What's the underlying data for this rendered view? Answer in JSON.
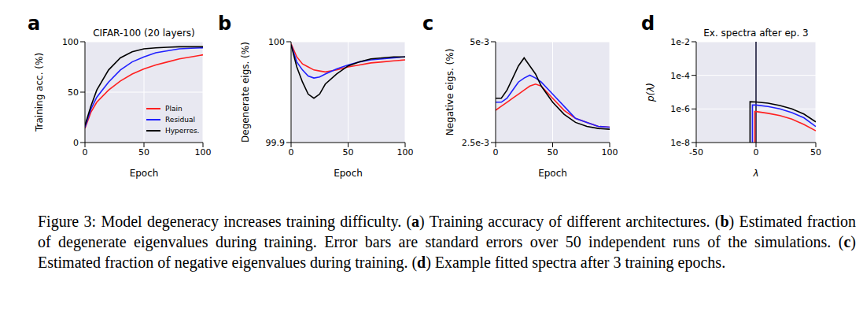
{
  "chart_data": [
    {
      "panel": "a",
      "type": "line",
      "title": "CIFAR-100 (20 layers)",
      "x_label": "Epoch",
      "y_label": "Training acc. (%)",
      "x": [
        0,
        5,
        10,
        20,
        30,
        40,
        50,
        60,
        70,
        80,
        90,
        100
      ],
      "series": [
        {
          "name": "Plain",
          "color": "#ff2020",
          "values": [
            14,
            30,
            40,
            52,
            61,
            68,
            73,
            77,
            80,
            83,
            85,
            87
          ]
        },
        {
          "name": "Residual",
          "color": "#2020ff",
          "values": [
            15,
            33,
            45,
            60,
            72,
            80,
            85,
            89,
            91,
            93,
            93.5,
            94
          ]
        },
        {
          "name": "Hyperres.",
          "color": "#000000",
          "values": [
            17,
            36,
            52,
            72,
            84,
            90,
            93,
            94,
            94.5,
            95,
            95,
            95
          ]
        }
      ],
      "xlim": [
        0,
        100
      ],
      "xticks": [
        0,
        50,
        100
      ],
      "ylim": [
        0,
        100
      ],
      "yticks": [
        0,
        50,
        100
      ],
      "grid": true,
      "legend": "lower right"
    },
    {
      "panel": "b",
      "type": "line",
      "x_label": "Epoch",
      "y_label": "Degenerate eigs. (%)",
      "x": [
        0,
        5,
        10,
        15,
        20,
        25,
        30,
        40,
        50,
        60,
        70,
        80,
        90,
        100
      ],
      "series": [
        {
          "name": "Plain",
          "color": "#ff2020",
          "values": [
            99.998,
            99.985,
            99.978,
            99.975,
            99.972,
            99.971,
            99.97,
            99.972,
            99.975,
            99.977,
            99.979,
            99.98,
            99.981,
            99.982
          ]
        },
        {
          "name": "Residual",
          "color": "#2020ff",
          "values": [
            99.997,
            99.98,
            99.972,
            99.966,
            99.964,
            99.965,
            99.968,
            99.973,
            99.977,
            99.98,
            99.982,
            99.983,
            99.984,
            99.985
          ]
        },
        {
          "name": "Hyperres.",
          "color": "#000000",
          "values": [
            99.997,
            99.975,
            99.96,
            99.948,
            99.944,
            99.948,
            99.958,
            99.968,
            99.976,
            99.98,
            99.983,
            99.984,
            99.985,
            99.985
          ]
        }
      ],
      "xlim": [
        0,
        100
      ],
      "xticks": [
        0,
        50,
        100
      ],
      "ylim": [
        99.9,
        100
      ],
      "yticks": [
        99.9,
        100
      ],
      "grid": true
    },
    {
      "panel": "c",
      "type": "line",
      "x_label": "Epoch",
      "y_label": "Negative eigs. (%)",
      "x": [
        0,
        5,
        10,
        15,
        20,
        25,
        30,
        35,
        40,
        50,
        60,
        70,
        80,
        90,
        100
      ],
      "series": [
        {
          "name": "Plain",
          "color": "#ff2020",
          "values": [
            0.0033,
            0.0034,
            0.0035,
            0.0036,
            0.0037,
            0.0038,
            0.0039,
            0.00395,
            0.0039,
            0.0036,
            0.0033,
            0.0031,
            0.003,
            0.0029,
            0.00288
          ]
        },
        {
          "name": "Residual",
          "color": "#2020ff",
          "values": [
            0.0035,
            0.0035,
            0.0036,
            0.0038,
            0.004,
            0.0041,
            0.00417,
            0.0041,
            0.004,
            0.0037,
            0.0034,
            0.0031,
            0.003,
            0.0029,
            0.00288
          ]
        },
        {
          "name": "Hyperres.",
          "color": "#000000",
          "values": [
            0.0036,
            0.0036,
            0.0038,
            0.0041,
            0.0044,
            0.0046,
            0.0044,
            0.0042,
            0.0039,
            0.0035,
            0.0032,
            0.003,
            0.0029,
            0.00285,
            0.00283
          ]
        }
      ],
      "xlim": [
        0,
        100
      ],
      "xticks": [
        0,
        50,
        100
      ],
      "ylim": [
        0.0025,
        0.005
      ],
      "yticks": [
        {
          "value": 0.0025,
          "label": "2.5e-3"
        },
        {
          "value": 0.005,
          "label": "5e-3"
        }
      ],
      "grid": true
    },
    {
      "panel": "d",
      "type": "line",
      "title": "Ex. spectra after ep. 3",
      "x_label": "λ",
      "y_label": "p(λ)",
      "series": [
        {
          "color": "#1a1a3a",
          "x": [
            0,
            0
          ],
          "values": [
            1e-08,
            0.01
          ]
        },
        {
          "name": "Plain",
          "color": "#ff2020",
          "x": [
            -1,
            -1,
            0,
            10,
            20,
            30,
            40,
            50
          ],
          "values": [
            1e-08,
            7e-07,
            7e-07,
            5.5e-07,
            4e-07,
            2.5e-07,
            1.2e-07,
            5e-08
          ]
        },
        {
          "name": "Residual",
          "color": "#2020ff",
          "x": [
            -3,
            -3,
            0,
            10,
            20,
            30,
            40,
            50
          ],
          "values": [
            1e-08,
            1.7e-06,
            1.7e-06,
            1.4e-06,
            1e-06,
            6e-07,
            3e-07,
            9e-08
          ]
        },
        {
          "name": "Hyperres.",
          "color": "#000000",
          "x": [
            -5,
            -5,
            0,
            10,
            20,
            30,
            40,
            50
          ],
          "values": [
            1e-08,
            2.7e-06,
            2.6e-06,
            2.2e-06,
            1.6e-06,
            1e-06,
            5e-07,
            1.7e-07
          ]
        }
      ],
      "xlim": [
        -50,
        50
      ],
      "xticks": [
        -50,
        0,
        50
      ],
      "ylim": [
        1e-08,
        0.01
      ],
      "yticks": [
        {
          "value": 1e-08,
          "label": "1e-8"
        },
        {
          "value": 1e-06,
          "label": "1e-6"
        },
        {
          "value": 0.0001,
          "label": "1e-4"
        },
        {
          "value": 0.01,
          "label": "1e-2"
        }
      ],
      "log": "y",
      "grid": true
    }
  ],
  "caption": [
    {
      "text": "Figure 3: Model degeneracy increases training difficulty. ("
    },
    {
      "text": "a",
      "bold": true
    },
    {
      "text": ") Training accuracy of different architectures. ("
    },
    {
      "text": "b",
      "bold": true
    },
    {
      "text": ") Estimated fraction of degenerate eigenvalues during training. Error bars are standard errors over 50 independent runs of the simulations. ("
    },
    {
      "text": "c",
      "bold": true
    },
    {
      "text": ") Estimated fraction of negative eigenvalues during training. ("
    },
    {
      "text": "d",
      "bold": true
    },
    {
      "text": ") Example fitted spectra after 3 training epochs."
    }
  ]
}
